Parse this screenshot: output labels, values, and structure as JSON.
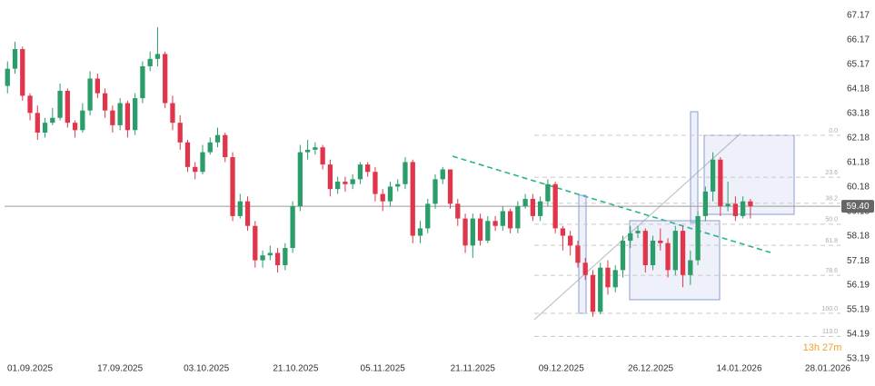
{
  "chart_data": {
    "type": "candlestick",
    "open": [
      64.3,
      65.0,
      65.8,
      63.9,
      63.2,
      62.4,
      62.8,
      63.0,
      64.1,
      62.8,
      62.5,
      63.3,
      64.6,
      64.0,
      63.3,
      62.7,
      63.6,
      62.5,
      63.8,
      65.1,
      65.4,
      65.6,
      63.6,
      62.8,
      62.0,
      61.0,
      60.8,
      61.6,
      62.0,
      62.3,
      61.4,
      59.0,
      59.6,
      58.6,
      57.2,
      57.4,
      57.5,
      57.0,
      57.7,
      59.4,
      61.6,
      61.7,
      61.8,
      61.1,
      60.1,
      60.4,
      60.3,
      60.5,
      61.1,
      60.8,
      59.9,
      59.6,
      60.2,
      60.3,
      61.2,
      58.2,
      58.5,
      59.5,
      60.5,
      60.9,
      59.5,
      58.9,
      57.8,
      58.9,
      58.0,
      58.8,
      58.6,
      59.2,
      58.5,
      59.4,
      59.7,
      59.0,
      59.6,
      60.3,
      58.5,
      58.2,
      57.8,
      57.1,
      56.6,
      55.1,
      56.9,
      56.1,
      56.8,
      58.0,
      58.3,
      58.4,
      57.0,
      58.0,
      57.9,
      56.8,
      58.4,
      56.6,
      57.2,
      59.0,
      60.0,
      61.3,
      59.4,
      59.5,
      59.0,
      59.6
    ],
    "high": [
      65.3,
      66.1,
      65.9,
      64.0,
      63.5,
      63.0,
      63.4,
      64.4,
      64.2,
      62.9,
      63.6,
      64.9,
      64.8,
      64.2,
      63.5,
      63.8,
      63.7,
      64.0,
      65.3,
      65.7,
      66.7,
      65.7,
      63.9,
      63.1,
      62.1,
      61.2,
      61.9,
      62.2,
      62.6,
      62.4,
      61.6,
      59.9,
      59.8,
      58.8,
      57.6,
      57.8,
      57.7,
      57.9,
      59.6,
      61.9,
      62.1,
      62.0,
      61.9,
      61.3,
      60.6,
      60.6,
      60.7,
      61.2,
      61.2,
      61.0,
      60.1,
      60.4,
      60.5,
      61.4,
      61.3,
      58.8,
      59.7,
      60.7,
      61.0,
      60.9,
      59.7,
      59.1,
      59.1,
      59.1,
      59.0,
      59.0,
      59.4,
      59.3,
      59.6,
      59.9,
      59.9,
      59.8,
      60.5,
      60.4,
      58.6,
      58.4,
      58.0,
      57.3,
      56.8,
      57.1,
      57.2,
      57.0,
      58.2,
      58.6,
      58.6,
      58.5,
      58.2,
      58.5,
      58.1,
      58.6,
      58.6,
      57.6,
      59.2,
      60.2,
      61.6,
      61.4,
      60.4,
      59.8,
      59.8,
      59.7
    ],
    "low": [
      64.0,
      64.8,
      63.7,
      62.9,
      62.1,
      62.2,
      62.7,
      62.9,
      62.6,
      62.2,
      62.4,
      63.1,
      63.8,
      63.0,
      62.4,
      62.5,
      62.2,
      62.3,
      63.6,
      64.9,
      65.1,
      63.4,
      62.5,
      61.7,
      60.8,
      60.5,
      60.7,
      61.5,
      61.8,
      61.2,
      58.8,
      58.9,
      58.4,
      56.9,
      56.9,
      57.2,
      56.7,
      56.8,
      57.5,
      59.2,
      61.3,
      61.5,
      60.9,
      59.8,
      59.9,
      60.0,
      60.1,
      60.3,
      60.6,
      59.6,
      59.2,
      59.4,
      60.0,
      60.1,
      57.9,
      57.9,
      58.3,
      59.3,
      60.3,
      59.3,
      58.6,
      57.5,
      57.3,
      57.8,
      57.9,
      58.4,
      58.4,
      58.3,
      58.3,
      59.3,
      58.8,
      58.8,
      59.4,
      58.3,
      57.6,
      57.4,
      56.9,
      56.4,
      54.9,
      55.0,
      55.8,
      55.9,
      56.5,
      57.7,
      58.1,
      56.7,
      56.8,
      57.6,
      56.5,
      56.6,
      56.1,
      56.2,
      57.0,
      58.8,
      59.6,
      59.0,
      59.2,
      58.8,
      58.9,
      58.9
    ],
    "close": [
      65.0,
      65.8,
      63.9,
      63.2,
      62.4,
      62.8,
      63.0,
      64.1,
      62.8,
      62.5,
      63.3,
      64.6,
      64.0,
      63.3,
      62.7,
      63.6,
      62.5,
      63.8,
      65.1,
      65.4,
      65.6,
      63.6,
      62.8,
      62.0,
      61.0,
      60.8,
      61.6,
      62.0,
      62.3,
      61.4,
      59.0,
      59.6,
      58.6,
      57.2,
      57.4,
      57.5,
      57.0,
      57.7,
      59.4,
      61.6,
      61.7,
      61.8,
      61.1,
      60.1,
      60.4,
      60.3,
      60.5,
      61.1,
      60.8,
      59.9,
      59.6,
      60.2,
      60.3,
      61.2,
      58.2,
      58.5,
      59.5,
      60.5,
      60.9,
      59.5,
      58.9,
      57.8,
      58.9,
      58.0,
      58.8,
      58.6,
      59.2,
      58.5,
      59.4,
      59.7,
      59.0,
      59.6,
      60.3,
      58.5,
      58.2,
      57.8,
      57.1,
      56.6,
      55.1,
      56.9,
      56.1,
      56.8,
      58.0,
      58.3,
      58.4,
      57.0,
      58.0,
      57.9,
      56.8,
      58.4,
      56.6,
      57.2,
      59.0,
      60.0,
      61.3,
      59.4,
      59.5,
      59.0,
      59.6,
      59.4
    ],
    "up_color": "#2a9d6a",
    "down_color": "#e0364b",
    "xlim": [
      -1,
      111
    ],
    "xticks": [
      {
        "value": 3,
        "label": "01.09.2025"
      },
      {
        "value": 15,
        "label": "17.09.2025"
      },
      {
        "value": 26.5,
        "label": "03.10.2025"
      },
      {
        "value": 38.4,
        "label": "21.10.2025"
      },
      {
        "value": 50,
        "label": "05.11.2025"
      },
      {
        "value": 62,
        "label": "21.11.2025"
      },
      {
        "value": 73.8,
        "label": "09.12.2025"
      },
      {
        "value": 85.7,
        "label": "26.12.2025"
      },
      {
        "value": 97.5,
        "label": "14.01.2026"
      },
      {
        "value": 109.3,
        "label": "28.01.2026"
      }
    ],
    "ylim": [
      53.19,
      67.17
    ],
    "yticks": [
      67.17,
      66.17,
      65.17,
      64.18,
      63.18,
      62.18,
      61.18,
      60.18,
      59.18,
      58.18,
      57.18,
      56.19,
      55.19,
      54.19,
      53.19
    ],
    "last_price": {
      "value": 59.4,
      "label": "59.40"
    },
    "fib_levels": [
      {
        "label": "0.0",
        "value": 62.29
      },
      {
        "label": "23.6",
        "value": 60.58
      },
      {
        "label": "38.2",
        "value": 59.52
      },
      {
        "label": "50.0",
        "value": 58.67
      },
      {
        "label": "61.8",
        "value": 57.81
      },
      {
        "label": "78.6",
        "value": 56.59
      },
      {
        "label": "100.0",
        "value": 55.04
      },
      {
        "label": "113.0",
        "value": 54.1
      }
    ],
    "countdown": "13h 27m"
  }
}
